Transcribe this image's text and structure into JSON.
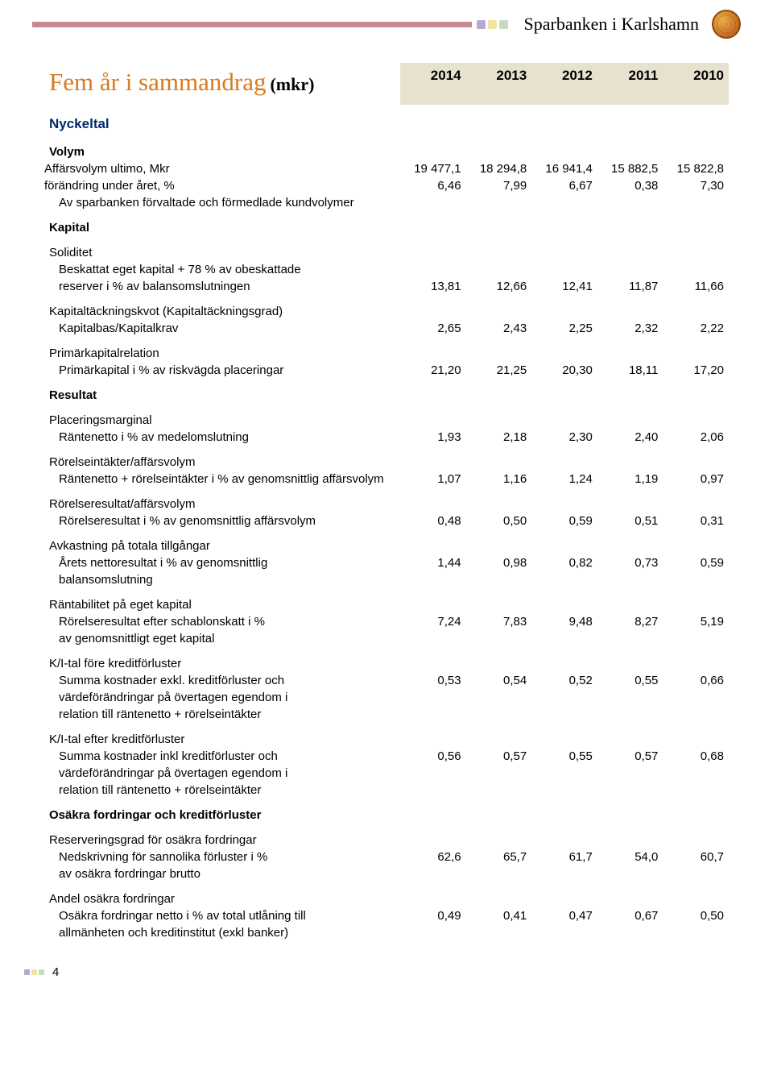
{
  "brand": {
    "name": "Sparbanken i Karlshamn"
  },
  "title": {
    "main": "Fem år i sammandrag",
    "unit": "(mkr)"
  },
  "years": [
    "2014",
    "2013",
    "2012",
    "2011",
    "2010"
  ],
  "sections": {
    "nyckeltal": "Nyckeltal",
    "volym": "Volym",
    "kapital": "Kapital",
    "resultat": "Resultat",
    "osakra": "Osäkra fordringar och kreditförluster"
  },
  "rows": {
    "affarsvolym": {
      "l1": "Affärsvolym ultimo, Mkr",
      "l2": "förändring under året, %",
      "l3": "Av sparbanken förvaltade och förmedlade kundvolymer",
      "v1": [
        "19 477,1",
        "18 294,8",
        "16 941,4",
        "15 882,5",
        "15 822,8"
      ],
      "v2": [
        "6,46",
        "7,99",
        "6,67",
        "0,38",
        "7,30"
      ]
    },
    "soliditet": {
      "l1": "Soliditet",
      "l2": "Beskattat eget kapital + 78 % av obeskattade",
      "l3": "reserver i % av balansomslutningen",
      "v": [
        "13,81",
        "12,66",
        "12,41",
        "11,87",
        "11,66"
      ]
    },
    "kapkvot": {
      "l1": "Kapitaltäckningskvot (Kapitaltäckningsgrad)",
      "l2": "Kapitalbas/Kapitalkrav",
      "v": [
        "2,65",
        "2,43",
        "2,25",
        "2,32",
        "2,22"
      ]
    },
    "primar": {
      "l1": "Primärkapitalrelation",
      "l2": "Primärkapital i % av riskvägda placeringar",
      "v": [
        "21,20",
        "21,25",
        "20,30",
        "18,11",
        "17,20"
      ]
    },
    "placmarg": {
      "l1": "Placeringsmarginal",
      "l2": "Räntenetto i % av medelomslutning",
      "v": [
        "1,93",
        "2,18",
        "2,30",
        "2,40",
        "2,06"
      ]
    },
    "rorelsei": {
      "l1": "Rörelseintäkter/affärsvolym",
      "l2": "Räntenetto + rörelseintäkter i % av genomsnittlig affärsvolym",
      "v": [
        "1,07",
        "1,16",
        "1,24",
        "1,19",
        "0,97"
      ]
    },
    "rorelser": {
      "l1": "Rörelseresultat/affärsvolym",
      "l2": "Rörelseresultat i % av genomsnittlig affärsvolym",
      "v": [
        "0,48",
        "0,50",
        "0,59",
        "0,51",
        "0,31"
      ]
    },
    "avkast": {
      "l1": "Avkastning på totala tillgångar",
      "l2": "Årets nettoresultat i % av genomsnittlig",
      "l3": "balansomslutning",
      "v": [
        "1,44",
        "0,98",
        "0,82",
        "0,73",
        "0,59"
      ]
    },
    "rantab": {
      "l1": "Räntabilitet på eget kapital",
      "l2": "Rörelseresultat efter schablonskatt i %",
      "l3": "av genomsnittligt eget kapital",
      "v": [
        "7,24",
        "7,83",
        "9,48",
        "8,27",
        "5,19"
      ]
    },
    "kif": {
      "l1": "K/I-tal före kreditförluster",
      "l2": "Summa kostnader exkl. kreditförluster och",
      "l3": "värdeförändringar på övertagen egendom i",
      "l4": "relation till räntenetto + rörelseintäkter",
      "v": [
        "0,53",
        "0,54",
        "0,52",
        "0,55",
        "0,66"
      ]
    },
    "kie": {
      "l1": "K/I-tal efter kreditförluster",
      "l2": "Summa kostnader inkl kreditförluster och",
      "l3": "värdeförändringar på övertagen egendom i",
      "l4": "relation till räntenetto + rörelseintäkter",
      "v": [
        "0,56",
        "0,57",
        "0,55",
        "0,57",
        "0,68"
      ]
    },
    "reserv": {
      "l1": "Reserveringsgrad för osäkra fordringar",
      "l2": "Nedskrivning för sannolika förluster i %",
      "l3": "av osäkra fordringar brutto",
      "v": [
        "62,6",
        "65,7",
        "61,7",
        "54,0",
        "60,7"
      ]
    },
    "andel": {
      "l1": "Andel osäkra fordringar",
      "l2": "Osäkra fordringar netto i % av total utlåning till",
      "l3": "allmänheten och kreditinstitut (exkl banker)",
      "v": [
        "0,49",
        "0,41",
        "0,47",
        "0,67",
        "0,50"
      ]
    }
  },
  "page_number": "4",
  "colors": {
    "accent_bar": "#c48a95",
    "title": "#d87a1f",
    "section": "#012a6b",
    "year_bg": "#e7e2d0"
  }
}
